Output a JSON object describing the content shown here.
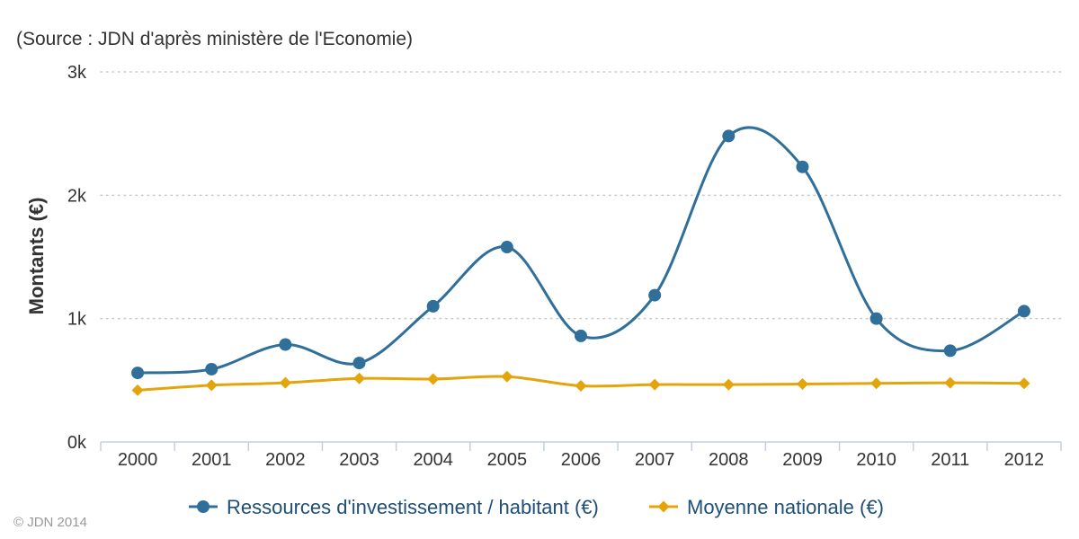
{
  "chart_data": {
    "type": "line",
    "subtitle": "(Source : JDN d'après ministère de l'Economie)",
    "ylabel": "Montants (€)",
    "xlabel": "",
    "categories": [
      "2000",
      "2001",
      "2002",
      "2003",
      "2004",
      "2005",
      "2006",
      "2007",
      "2008",
      "2009",
      "2010",
      "2011",
      "2012"
    ],
    "ylim": [
      0,
      3000
    ],
    "yticks": [
      0,
      1000,
      2000,
      3000
    ],
    "ytick_labels": [
      "0k",
      "1k",
      "2k",
      "3k"
    ],
    "grid": true,
    "legend_position": "bottom-center",
    "series": [
      {
        "name": "Ressources d'investissement / habitant (€)",
        "color": "#2f6f9a",
        "marker": "circle",
        "values": [
          560,
          590,
          790,
          640,
          1100,
          1580,
          860,
          1190,
          2480,
          2230,
          1000,
          740,
          1060
        ]
      },
      {
        "name": "Moyenne nationale (€)",
        "color": "#e3a40c",
        "marker": "diamond",
        "values": [
          420,
          460,
          480,
          515,
          510,
          530,
          455,
          465,
          465,
          470,
          475,
          480,
          475
        ]
      }
    ]
  },
  "credits": "© JDN 2014"
}
